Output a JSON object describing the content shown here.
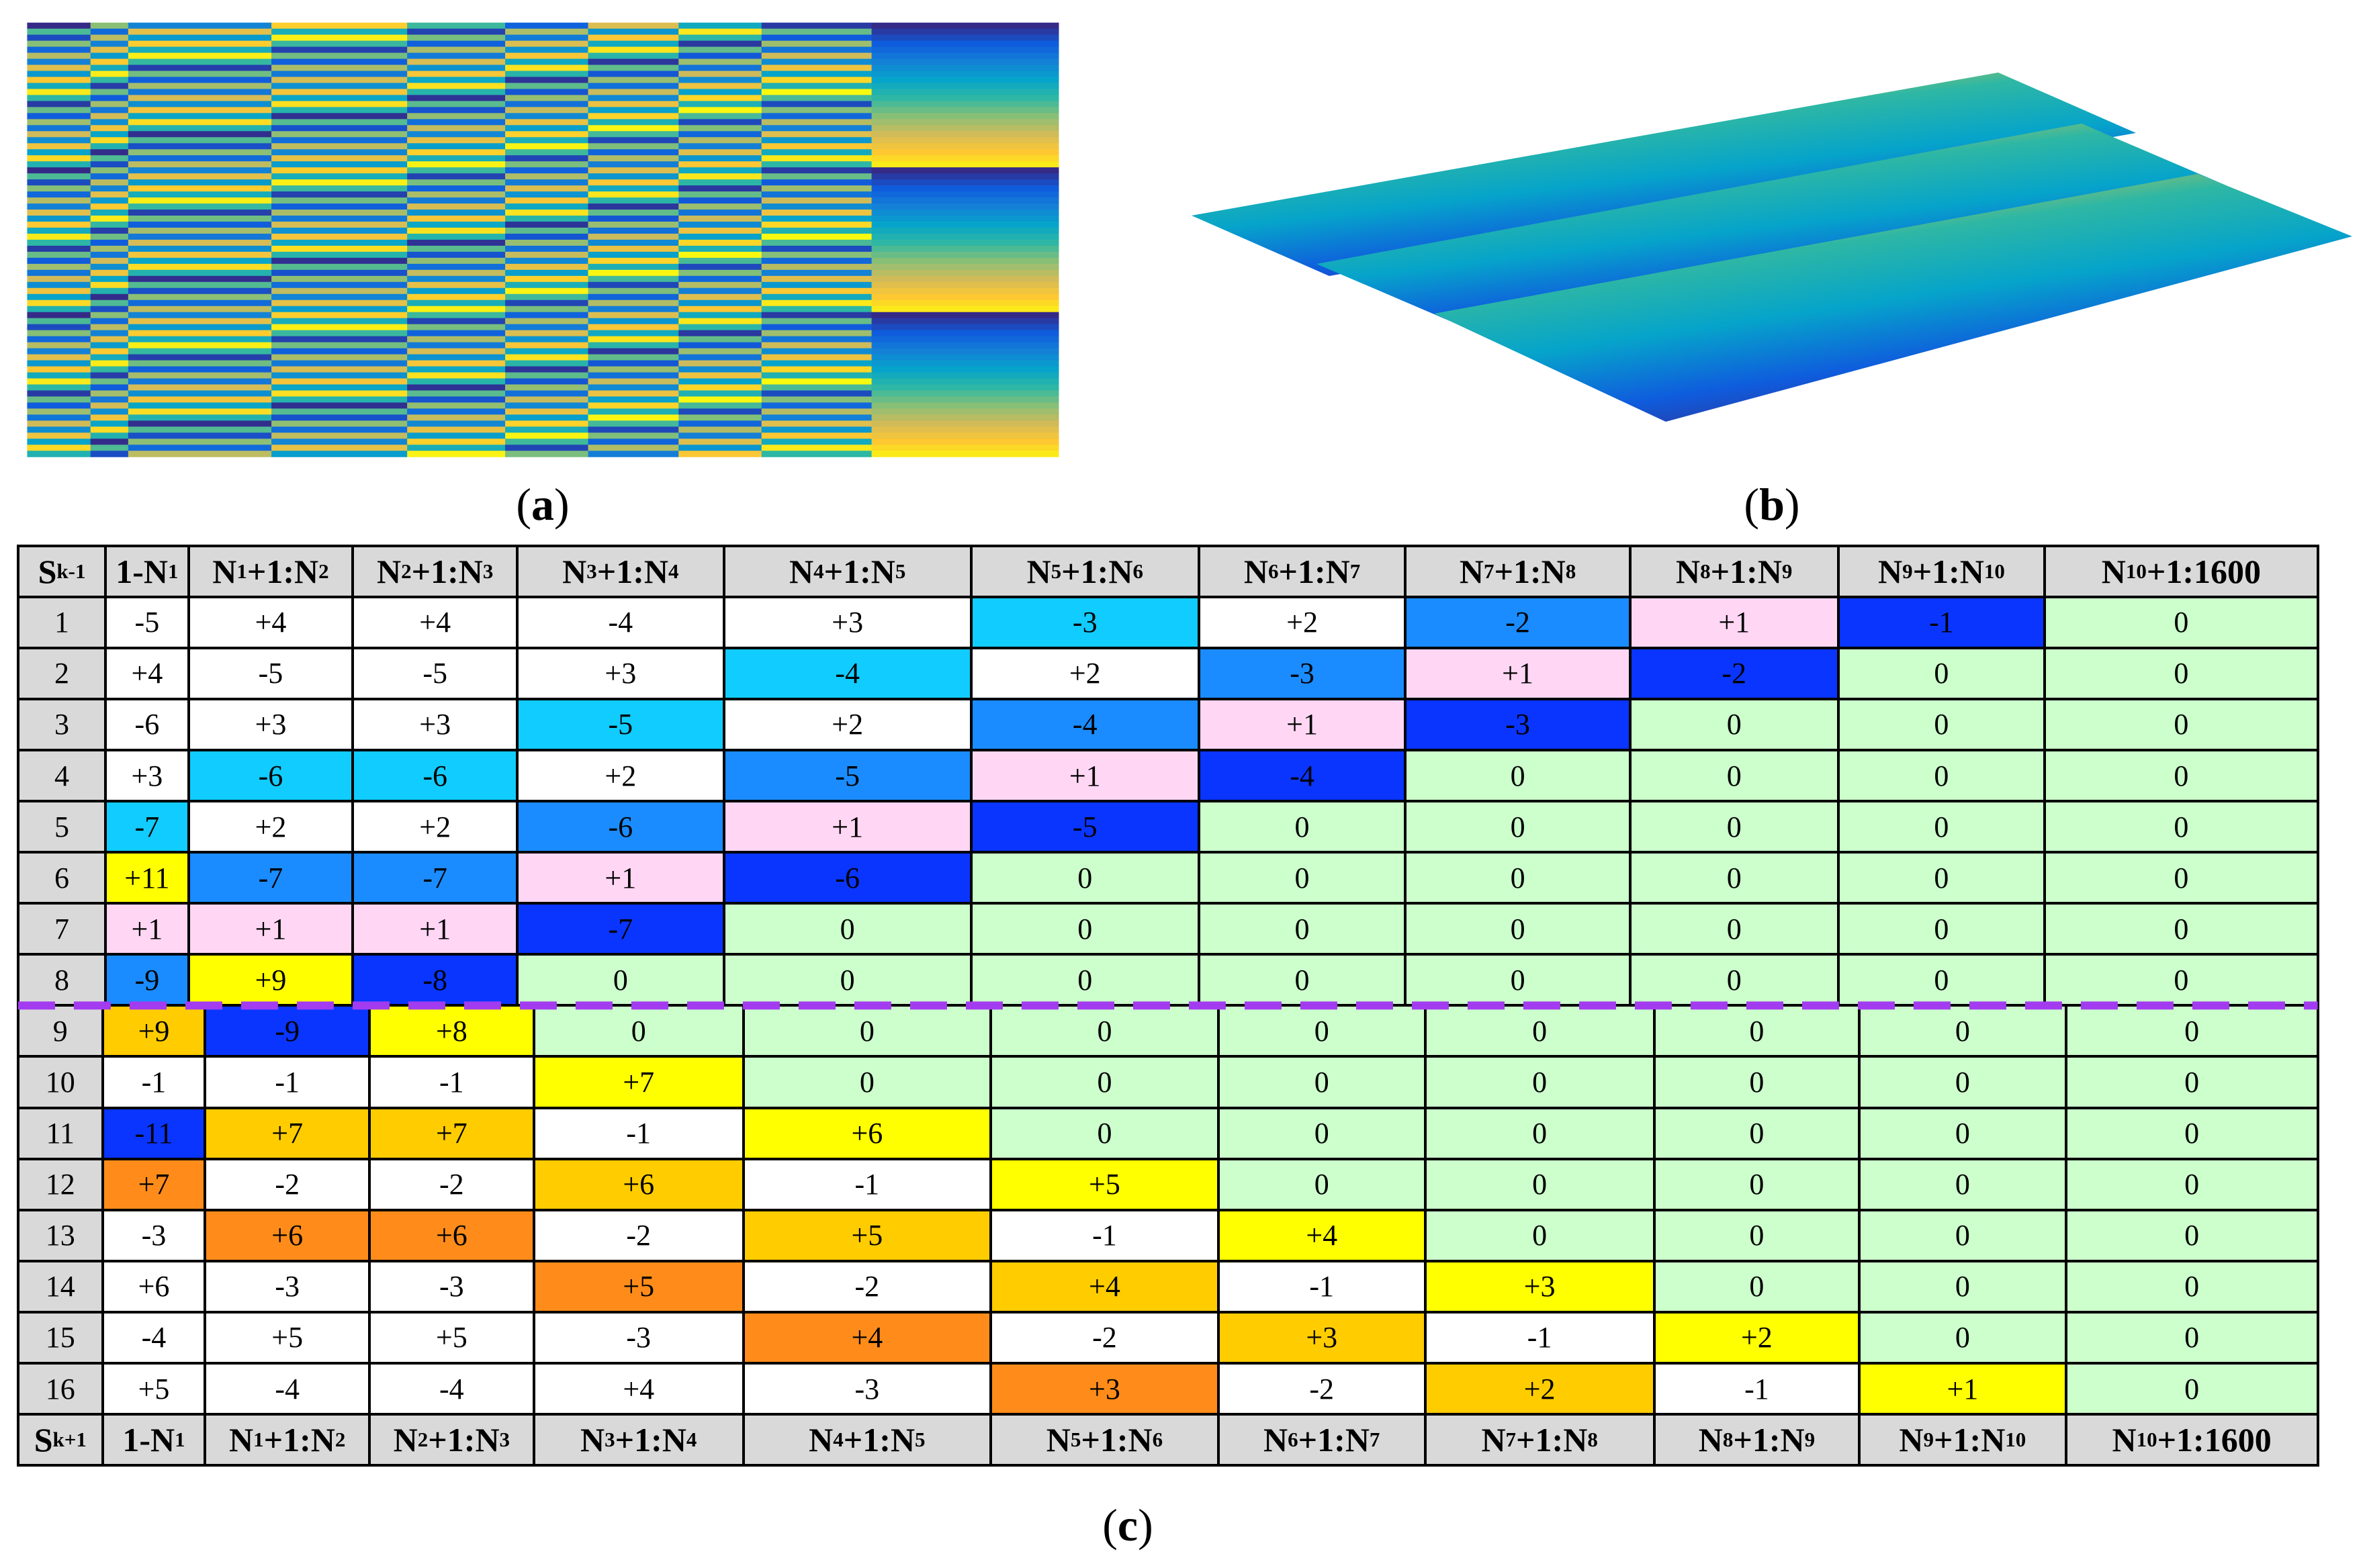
{
  "labels": {
    "a": "(a)",
    "b": "(b)",
    "c": "(c)"
  },
  "table": {
    "header_fill": "#d9d9d9",
    "header": [
      "Sk-1",
      "1-N1",
      "N1+1:N2",
      "N2+1:N3",
      "N3+1:N4",
      "N4+1:N5",
      "N5+1:N6",
      "N6+1:N7",
      "N7+1:N8",
      "N8+1:N9",
      "N9+1:N10",
      "N10+1:1600"
    ],
    "top_rows": [
      [
        "1",
        "-5",
        "+4",
        "+4",
        "-4",
        "+3",
        "-3",
        "+2",
        "-2",
        "+1",
        "-1",
        "0"
      ],
      [
        "2",
        "+4",
        "-5",
        "-5",
        "+3",
        "-4",
        "+2",
        "-3",
        "+1",
        "-2",
        "0",
        "0"
      ],
      [
        "3",
        "-6",
        "+3",
        "+3",
        "-5",
        "+2",
        "-4",
        "+1",
        "-3",
        "0",
        "0",
        "0"
      ],
      [
        "4",
        "+3",
        "-6",
        "-6",
        "+2",
        "-5",
        "+1",
        "-4",
        "0",
        "0",
        "0",
        "0"
      ],
      [
        "5",
        "-7",
        "+2",
        "+2",
        "-6",
        "+1",
        "-5",
        "0",
        "0",
        "0",
        "0",
        "0"
      ],
      [
        "6",
        "+11",
        "-7",
        "-7",
        "+1",
        "-6",
        "0",
        "0",
        "0",
        "0",
        "0",
        "0"
      ],
      [
        "7",
        "+1",
        "+1",
        "+1",
        "-7",
        "0",
        "0",
        "0",
        "0",
        "0",
        "0",
        "0"
      ],
      [
        "8",
        "-9",
        "+9",
        "-8",
        "0",
        "0",
        "0",
        "0",
        "0",
        "0",
        "0",
        "0"
      ]
    ],
    "top_fills": [
      [
        "#d9d9d9",
        "#ffffff",
        "#ffffff",
        "#ffffff",
        "#ffffff",
        "#ffffff",
        "#11ccff",
        "#ffffff",
        "#1a8cff",
        "#ffd7f4",
        "#0a35ff",
        "#ccffcc"
      ],
      [
        "#d9d9d9",
        "#ffffff",
        "#ffffff",
        "#ffffff",
        "#ffffff",
        "#11ccff",
        "#ffffff",
        "#1a8cff",
        "#ffd7f4",
        "#0a35ff",
        "#ccffcc",
        "#ccffcc"
      ],
      [
        "#d9d9d9",
        "#ffffff",
        "#ffffff",
        "#ffffff",
        "#11ccff",
        "#ffffff",
        "#1a8cff",
        "#ffd7f4",
        "#0a35ff",
        "#ccffcc",
        "#ccffcc",
        "#ccffcc"
      ],
      [
        "#d9d9d9",
        "#ffffff",
        "#11ccff",
        "#11ccff",
        "#ffffff",
        "#1a8cff",
        "#ffd7f4",
        "#0a35ff",
        "#ccffcc",
        "#ccffcc",
        "#ccffcc",
        "#ccffcc"
      ],
      [
        "#d9d9d9",
        "#11ccff",
        "#ffffff",
        "#ffffff",
        "#1a8cff",
        "#ffd7f4",
        "#0a35ff",
        "#ccffcc",
        "#ccffcc",
        "#ccffcc",
        "#ccffcc",
        "#ccffcc"
      ],
      [
        "#d9d9d9",
        "#ffff00",
        "#1a8cff",
        "#1a8cff",
        "#ffd7f4",
        "#0a35ff",
        "#ccffcc",
        "#ccffcc",
        "#ccffcc",
        "#ccffcc",
        "#ccffcc",
        "#ccffcc"
      ],
      [
        "#d9d9d9",
        "#ffd7f4",
        "#ffd7f4",
        "#ffd7f4",
        "#0a35ff",
        "#ccffcc",
        "#ccffcc",
        "#ccffcc",
        "#ccffcc",
        "#ccffcc",
        "#ccffcc",
        "#ccffcc"
      ],
      [
        "#d9d9d9",
        "#1a8cff",
        "#ffff00",
        "#0a35ff",
        "#ccffcc",
        "#ccffcc",
        "#ccffcc",
        "#ccffcc",
        "#ccffcc",
        "#ccffcc",
        "#ccffcc",
        "#ccffcc"
      ]
    ],
    "bottom_rows": [
      [
        "9",
        "+9",
        "-9",
        "+8",
        "0",
        "0",
        "0",
        "0",
        "0",
        "0",
        "0",
        "0"
      ],
      [
        "10",
        "-1",
        "-1",
        "-1",
        "+7",
        "0",
        "0",
        "0",
        "0",
        "0",
        "0",
        "0"
      ],
      [
        "11",
        "-11",
        "+7",
        "+7",
        "-1",
        "+6",
        "0",
        "0",
        "0",
        "0",
        "0",
        "0"
      ],
      [
        "12",
        "+7",
        "-2",
        "-2",
        "+6",
        "-1",
        "+5",
        "0",
        "0",
        "0",
        "0",
        "0"
      ],
      [
        "13",
        "-3",
        "+6",
        "+6",
        "-2",
        "+5",
        "-1",
        "+4",
        "0",
        "0",
        "0",
        "0"
      ],
      [
        "14",
        "+6",
        "-3",
        "-3",
        "+5",
        "-2",
        "+4",
        "-1",
        "+3",
        "0",
        "0",
        "0"
      ],
      [
        "15",
        "-4",
        "+5",
        "+5",
        "-3",
        "+4",
        "-2",
        "+3",
        "-1",
        "+2",
        "0",
        "0"
      ],
      [
        "16",
        "+5",
        "-4",
        "-4",
        "+4",
        "-3",
        "+3",
        "-2",
        "+2",
        "-1",
        "+1",
        "0"
      ]
    ],
    "bottom_fills": [
      [
        "#d9d9d9",
        "#ffcc00",
        "#0a35ff",
        "#ffff00",
        "#ccffcc",
        "#ccffcc",
        "#ccffcc",
        "#ccffcc",
        "#ccffcc",
        "#ccffcc",
        "#ccffcc",
        "#ccffcc"
      ],
      [
        "#d9d9d9",
        "#ffffff",
        "#ffffff",
        "#ffffff",
        "#ffff00",
        "#ccffcc",
        "#ccffcc",
        "#ccffcc",
        "#ccffcc",
        "#ccffcc",
        "#ccffcc",
        "#ccffcc"
      ],
      [
        "#d9d9d9",
        "#0a35ff",
        "#ffcc00",
        "#ffcc00",
        "#ffffff",
        "#ffff00",
        "#ccffcc",
        "#ccffcc",
        "#ccffcc",
        "#ccffcc",
        "#ccffcc",
        "#ccffcc"
      ],
      [
        "#d9d9d9",
        "#ff8c1a",
        "#ffffff",
        "#ffffff",
        "#ffcc00",
        "#ffffff",
        "#ffff00",
        "#ccffcc",
        "#ccffcc",
        "#ccffcc",
        "#ccffcc",
        "#ccffcc"
      ],
      [
        "#d9d9d9",
        "#ffffff",
        "#ff8c1a",
        "#ff8c1a",
        "#ffffff",
        "#ffcc00",
        "#ffffff",
        "#ffff00",
        "#ccffcc",
        "#ccffcc",
        "#ccffcc",
        "#ccffcc"
      ],
      [
        "#d9d9d9",
        "#ffffff",
        "#ffffff",
        "#ffffff",
        "#ff8c1a",
        "#ffffff",
        "#ffcc00",
        "#ffffff",
        "#ffff00",
        "#ccffcc",
        "#ccffcc",
        "#ccffcc"
      ],
      [
        "#d9d9d9",
        "#ffffff",
        "#ffffff",
        "#ffffff",
        "#ffffff",
        "#ff8c1a",
        "#ffffff",
        "#ffcc00",
        "#ffffff",
        "#ffff00",
        "#ccffcc",
        "#ccffcc"
      ],
      [
        "#d9d9d9",
        "#ffffff",
        "#ffffff",
        "#ffffff",
        "#ffffff",
        "#ffffff",
        "#ff8c1a",
        "#ffffff",
        "#ffcc00",
        "#ffffff",
        "#ffff00",
        "#ccffcc"
      ]
    ],
    "footer": [
      "Sk+1",
      "1-N1",
      "N1+1:N2",
      "N2+1:N3",
      "N3+1:N4",
      "N4+1:N5",
      "N5+1:N6",
      "N6+1:N7",
      "N7+1:N8",
      "N8+1:N9",
      "N9+1:N10",
      "N10+1:1600"
    ]
  }
}
